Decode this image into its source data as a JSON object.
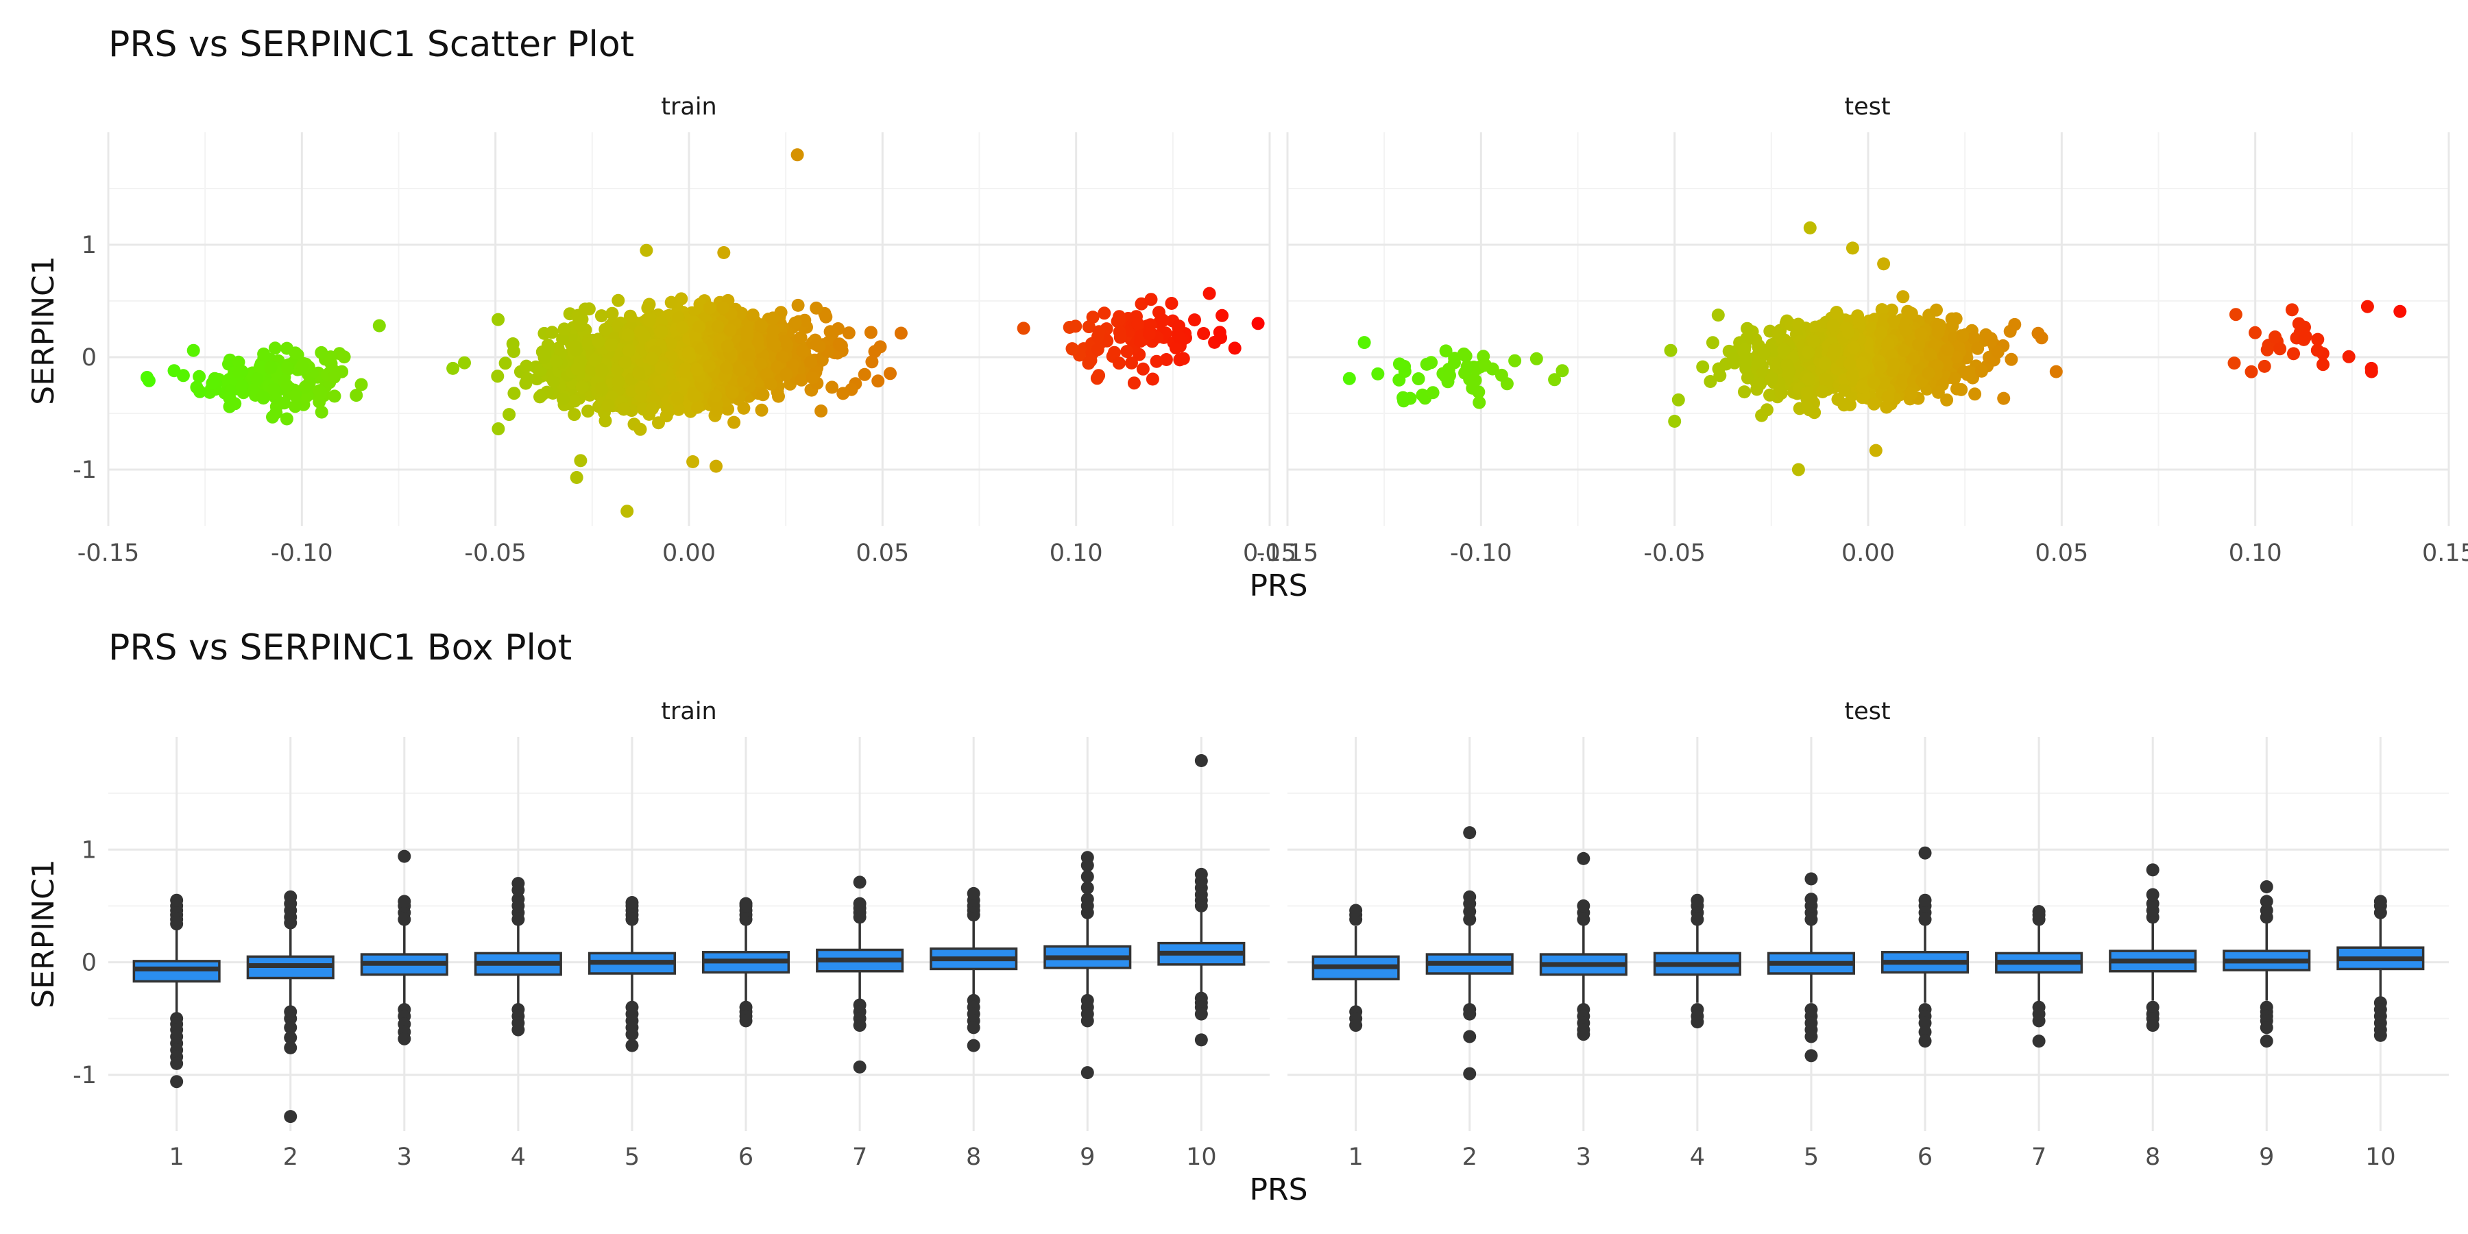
{
  "figure": {
    "scatter_title": "PRS vs SERPINC1 Scatter Plot",
    "box_title": "PRS vs SERPINC1 Box Plot",
    "xlabel": "PRS",
    "ylabel": "SERPINC1",
    "panels": [
      "train",
      "test"
    ]
  },
  "chart_data": [
    {
      "type": "scatter",
      "title": "PRS vs SERPINC1 Scatter Plot",
      "xlabel": "PRS",
      "ylabel": "SERPINC1",
      "facets": [
        "train",
        "test"
      ],
      "xlim": [
        -0.15,
        0.15
      ],
      "ylim": [
        -1.5,
        2.0
      ],
      "x_ticks": [
        -0.15,
        -0.1,
        -0.05,
        0.0,
        0.05,
        0.1,
        0.15
      ],
      "x_tick_labels": [
        "-0.15",
        "-0.10",
        "-0.05",
        "0.00",
        "0.05",
        "0.10",
        "0.15"
      ],
      "y_ticks": [
        -1,
        0,
        1
      ],
      "y_tick_labels": [
        "-1",
        "0",
        "1"
      ],
      "color_scale": {
        "low": "#4df900",
        "mid": "#cdb400",
        "high": "#ff0000",
        "domain": [
          -0.14,
          0.0,
          0.15
        ]
      },
      "grid": true,
      "series": [
        {
          "facet": "train",
          "clusters": [
            {
              "x_center": -0.108,
              "x_sd": 0.009,
              "y_center": -0.19,
              "y_sd": 0.12,
              "count": 170
            },
            {
              "x_center": -0.002,
              "x_sd": 0.015,
              "y_center": -0.02,
              "y_sd": 0.17,
              "count": 3200
            },
            {
              "x_center": 0.117,
              "x_sd": 0.009,
              "y_center": 0.17,
              "y_sd": 0.14,
              "count": 95
            }
          ],
          "points": [
            {
              "x": -0.14,
              "y": -0.18
            },
            {
              "x": -0.133,
              "y": -0.12
            },
            {
              "x": -0.128,
              "y": 0.06
            },
            {
              "x": -0.08,
              "y": 0.28
            },
            {
              "x": -0.061,
              "y": -0.1
            },
            {
              "x": -0.058,
              "y": -0.05
            },
            {
              "x": 0.028,
              "y": 1.8
            },
            {
              "x": -0.011,
              "y": 0.95
            },
            {
              "x": 0.009,
              "y": 0.93
            },
            {
              "x": -0.028,
              "y": -0.92
            },
            {
              "x": -0.029,
              "y": -1.07
            },
            {
              "x": -0.016,
              "y": -1.37
            },
            {
              "x": 0.001,
              "y": -0.93
            },
            {
              "x": 0.007,
              "y": -0.97
            },
            {
              "x": 0.048,
              "y": 0.05
            },
            {
              "x": 0.047,
              "y": 0.22
            },
            {
              "x": 0.115,
              "y": -0.23
            },
            {
              "x": 0.141,
              "y": 0.08
            },
            {
              "x": 0.147,
              "y": 0.3
            }
          ]
        },
        {
          "facet": "test",
          "clusters": [
            {
              "x_center": -0.108,
              "x_sd": 0.01,
              "y_center": -0.17,
              "y_sd": 0.12,
              "count": 42
            },
            {
              "x_center": -0.002,
              "x_sd": 0.014,
              "y_center": -0.01,
              "y_sd": 0.16,
              "count": 1400
            },
            {
              "x_center": 0.114,
              "x_sd": 0.01,
              "y_center": 0.15,
              "y_sd": 0.13,
              "count": 24
            }
          ],
          "points": [
            {
              "x": -0.134,
              "y": -0.19
            },
            {
              "x": -0.079,
              "y": -0.12
            },
            {
              "x": -0.081,
              "y": -0.2
            },
            {
              "x": -0.051,
              "y": 0.06
            },
            {
              "x": -0.049,
              "y": -0.38
            },
            {
              "x": -0.05,
              "y": -0.57
            },
            {
              "x": -0.015,
              "y": 1.15
            },
            {
              "x": -0.004,
              "y": 0.97
            },
            {
              "x": 0.004,
              "y": 0.83
            },
            {
              "x": -0.018,
              "y": -1.0
            },
            {
              "x": 0.002,
              "y": -0.83
            },
            {
              "x": 0.037,
              "y": -0.02
            },
            {
              "x": 0.095,
              "y": 0.38
            },
            {
              "x": 0.099,
              "y": -0.13
            },
            {
              "x": 0.129,
              "y": 0.45
            },
            {
              "x": 0.13,
              "y": -0.1
            }
          ]
        }
      ]
    },
    {
      "type": "box",
      "title": "PRS vs SERPINC1 Box Plot",
      "xlabel": "PRS",
      "ylabel": "SERPINC1",
      "facets": [
        "train",
        "test"
      ],
      "categories": [
        "1",
        "2",
        "3",
        "4",
        "5",
        "6",
        "7",
        "8",
        "9",
        "10"
      ],
      "ylim": [
        -1.5,
        2.0
      ],
      "y_ticks": [
        -1,
        0,
        1
      ],
      "y_tick_labels": [
        "-1",
        "0",
        "1"
      ],
      "box_fill": "#2b8ef0",
      "box_stroke": "#333333",
      "grid": true,
      "series": [
        {
          "facet": "train",
          "boxes": [
            {
              "q1": -0.17,
              "median": -0.06,
              "q3": 0.01,
              "whisker_low": -0.45,
              "whisker_high": 0.3,
              "outliers": [
                0.34,
                0.38,
                0.42,
                0.46,
                0.5,
                0.55,
                -0.5,
                -0.55,
                -0.6,
                -0.66,
                -0.72,
                -0.78,
                -0.84,
                -0.9,
                -1.06
              ]
            },
            {
              "q1": -0.14,
              "median": -0.03,
              "q3": 0.05,
              "whisker_low": -0.4,
              "whisker_high": 0.32,
              "outliers": [
                0.35,
                0.4,
                0.46,
                0.52,
                0.58,
                -0.44,
                -0.5,
                -0.58,
                -0.67,
                -0.76,
                -1.37
              ]
            },
            {
              "q1": -0.11,
              "median": -0.01,
              "q3": 0.07,
              "whisker_low": -0.38,
              "whisker_high": 0.34,
              "outliers": [
                0.38,
                0.44,
                0.5,
                0.54,
                0.94,
                -0.42,
                -0.48,
                -0.55,
                -0.62,
                -0.68
              ]
            },
            {
              "q1": -0.11,
              "median": -0.01,
              "q3": 0.08,
              "whisker_low": -0.38,
              "whisker_high": 0.34,
              "outliers": [
                0.38,
                0.44,
                0.5,
                0.56,
                0.64,
                0.7,
                -0.42,
                -0.48,
                -0.54,
                -0.6
              ]
            },
            {
              "q1": -0.1,
              "median": 0.0,
              "q3": 0.08,
              "whisker_low": -0.37,
              "whisker_high": 0.34,
              "outliers": [
                0.38,
                0.42,
                0.46,
                0.5,
                0.53,
                -0.4,
                -0.46,
                -0.52,
                -0.58,
                -0.64,
                -0.74
              ]
            },
            {
              "q1": -0.09,
              "median": 0.01,
              "q3": 0.09,
              "whisker_low": -0.36,
              "whisker_high": 0.35,
              "outliers": [
                0.38,
                0.42,
                0.46,
                0.5,
                0.52,
                -0.4,
                -0.44,
                -0.48,
                -0.52
              ]
            },
            {
              "q1": -0.08,
              "median": 0.02,
              "q3": 0.11,
              "whisker_low": -0.35,
              "whisker_high": 0.37,
              "outliers": [
                0.4,
                0.44,
                0.48,
                0.52,
                0.71,
                -0.38,
                -0.44,
                -0.5,
                -0.56,
                -0.93
              ]
            },
            {
              "q1": -0.06,
              "median": 0.03,
              "q3": 0.12,
              "whisker_low": -0.32,
              "whisker_high": 0.38,
              "outliers": [
                0.42,
                0.46,
                0.5,
                0.55,
                0.61,
                -0.34,
                -0.4,
                -0.46,
                -0.52,
                -0.58,
                -0.74
              ]
            },
            {
              "q1": -0.05,
              "median": 0.04,
              "q3": 0.14,
              "whisker_low": -0.32,
              "whisker_high": 0.4,
              "outliers": [
                0.44,
                0.5,
                0.56,
                0.66,
                0.76,
                0.86,
                0.93,
                -0.34,
                -0.4,
                -0.46,
                -0.52,
                -0.98
              ]
            },
            {
              "q1": -0.02,
              "median": 0.08,
              "q3": 0.17,
              "whisker_low": -0.28,
              "whisker_high": 0.45,
              "outliers": [
                0.5,
                0.55,
                0.6,
                0.66,
                0.72,
                0.78,
                1.79,
                -0.32,
                -0.36,
                -0.4,
                -0.46,
                -0.69
              ]
            }
          ]
        },
        {
          "facet": "test",
          "boxes": [
            {
              "q1": -0.15,
              "median": -0.04,
              "q3": 0.05,
              "whisker_low": -0.4,
              "whisker_high": 0.32,
              "outliers": [
                0.38,
                0.42,
                0.46,
                -0.44,
                -0.5,
                -0.56
              ]
            },
            {
              "q1": -0.1,
              "median": -0.01,
              "q3": 0.07,
              "whisker_low": -0.37,
              "whisker_high": 0.33,
              "outliers": [
                0.38,
                0.45,
                0.52,
                0.58,
                1.15,
                -0.42,
                -0.46,
                -0.66,
                -0.99
              ]
            },
            {
              "q1": -0.11,
              "median": -0.02,
              "q3": 0.07,
              "whisker_low": -0.37,
              "whisker_high": 0.33,
              "outliers": [
                0.38,
                0.44,
                0.5,
                0.92,
                -0.42,
                -0.48,
                -0.54,
                -0.6,
                -0.64
              ]
            },
            {
              "q1": -0.11,
              "median": -0.02,
              "q3": 0.08,
              "whisker_low": -0.36,
              "whisker_high": 0.33,
              "outliers": [
                0.38,
                0.44,
                0.5,
                0.55,
                -0.42,
                -0.48,
                -0.53
              ]
            },
            {
              "q1": -0.1,
              "median": -0.01,
              "q3": 0.08,
              "whisker_low": -0.36,
              "whisker_high": 0.34,
              "outliers": [
                0.38,
                0.44,
                0.5,
                0.56,
                0.74,
                -0.42,
                -0.48,
                -0.54,
                -0.6,
                -0.66,
                -0.83
              ]
            },
            {
              "q1": -0.09,
              "median": 0.0,
              "q3": 0.09,
              "whisker_low": -0.36,
              "whisker_high": 0.35,
              "outliers": [
                0.38,
                0.44,
                0.5,
                0.55,
                0.97,
                -0.42,
                -0.48,
                -0.54,
                -0.62,
                -0.7
              ]
            },
            {
              "q1": -0.09,
              "median": 0.0,
              "q3": 0.08,
              "whisker_low": -0.35,
              "whisker_high": 0.34,
              "outliers": [
                0.38,
                0.42,
                0.45,
                -0.4,
                -0.46,
                -0.52,
                -0.7
              ]
            },
            {
              "q1": -0.08,
              "median": 0.01,
              "q3": 0.1,
              "whisker_low": -0.34,
              "whisker_high": 0.36,
              "outliers": [
                0.4,
                0.46,
                0.52,
                0.6,
                0.82,
                -0.4,
                -0.46,
                -0.5,
                -0.56
              ]
            },
            {
              "q1": -0.07,
              "median": 0.01,
              "q3": 0.1,
              "whisker_low": -0.34,
              "whisker_high": 0.36,
              "outliers": [
                0.4,
                0.46,
                0.54,
                0.67,
                -0.4,
                -0.44,
                -0.48,
                -0.52,
                -0.58,
                -0.7
              ]
            },
            {
              "q1": -0.06,
              "median": 0.03,
              "q3": 0.13,
              "whisker_low": -0.31,
              "whisker_high": 0.4,
              "outliers": [
                0.44,
                0.5,
                0.54,
                -0.36,
                -0.42,
                -0.48,
                -0.54,
                -0.6,
                -0.65
              ]
            }
          ]
        }
      ]
    }
  ]
}
